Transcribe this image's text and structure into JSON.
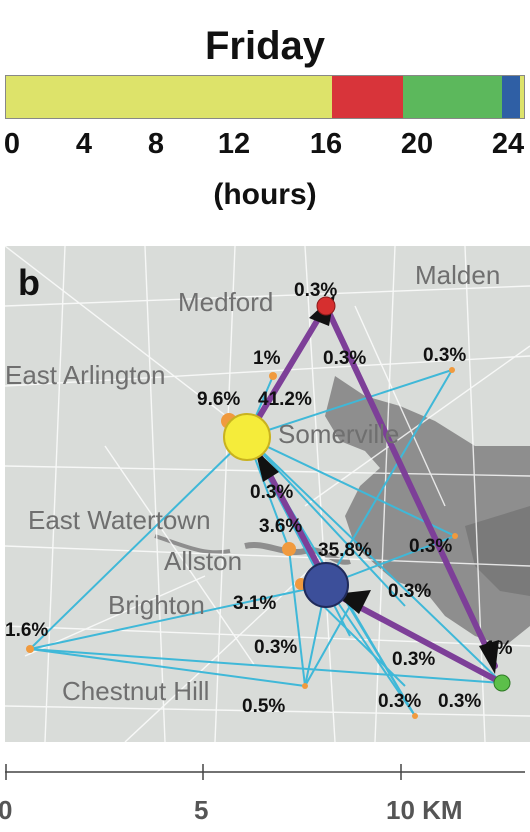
{
  "header": {
    "title": "Friday",
    "x_axis_label": "(hours)",
    "ticks": [
      "0",
      "4",
      "8",
      "12",
      "16",
      "20",
      "24"
    ]
  },
  "timeline": {
    "segments": [
      {
        "start": 0,
        "end": 15.1,
        "color": "#dde36a"
      },
      {
        "start": 15.1,
        "end": 18.4,
        "color": "#d8343a"
      },
      {
        "start": 18.4,
        "end": 23.0,
        "color": "#5cb85c"
      },
      {
        "start": 23.0,
        "end": 23.8,
        "color": "#2f5fa5"
      },
      {
        "start": 23.8,
        "end": 24,
        "color": "#dde36a"
      }
    ]
  },
  "map": {
    "panel_label": "b",
    "place_names": {
      "malden": "Malden",
      "medford": "Medford",
      "east_arlington": "East Arlington",
      "somerville": "Somerville",
      "east_watertown": "East Watertown",
      "allston": "Allston",
      "brighton": "Brighton",
      "chestnut_hill": "Chestnut Hill"
    },
    "percentages": {
      "medford_top": "0.3%",
      "one_pct": "1%",
      "medford_edge": "0.3%",
      "right_top": "0.3%",
      "home_big": "9.6%",
      "home_edge": "41.2%",
      "home_down": "0.3%",
      "mid_36": "3.6%",
      "work_big": "35.8%",
      "right_mid": "0.3%",
      "work_right": "0.3%",
      "left_16": "1.6%",
      "brighton_31": "3.1%",
      "lower_03": "0.3%",
      "green_edge_a": "0.3%",
      "green_1pct": "1%",
      "bottom_05": "0.5%",
      "bottom_03a": "0.3%",
      "bottom_03b": "0.3%"
    },
    "colors": {
      "home": "#f5ec3a",
      "work": "#3c4f9a",
      "red_node": "#d62f2f",
      "green_node": "#5cbf4a",
      "small_node": "#f09a3e",
      "trip_edge": "#3fb8d8",
      "route": "#7d3f98",
      "arrow": "#111111"
    }
  },
  "scale": {
    "labels": [
      "0",
      "5",
      "10 KM"
    ]
  }
}
